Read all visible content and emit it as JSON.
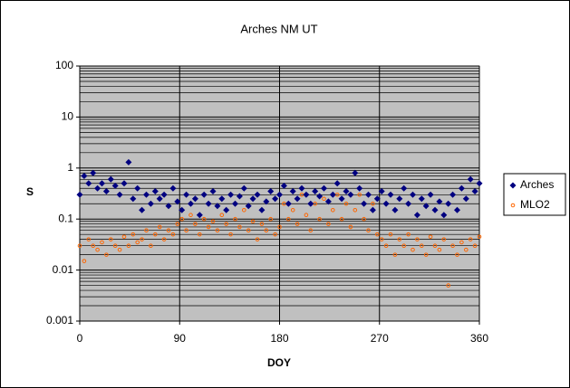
{
  "chart_data": {
    "type": "scatter",
    "title": "Arches NM UT",
    "x_label": "DOY",
    "y_label": "S",
    "log_y": true,
    "grid": true,
    "minor_grid": true,
    "legend": "right",
    "xlim": [
      0,
      360
    ],
    "xticks": [
      0,
      90,
      180,
      270,
      360
    ],
    "ylim": [
      0.001,
      100
    ],
    "yticks": [
      0.001,
      0.01,
      0.1,
      1,
      10,
      100
    ],
    "x": [
      0,
      4,
      8,
      12,
      16,
      20,
      24,
      28,
      32,
      36,
      40,
      44,
      48,
      52,
      56,
      60,
      64,
      68,
      72,
      76,
      80,
      84,
      88,
      92,
      96,
      100,
      104,
      108,
      112,
      116,
      120,
      124,
      128,
      132,
      136,
      140,
      144,
      148,
      152,
      156,
      160,
      164,
      168,
      172,
      176,
      180,
      184,
      188,
      192,
      196,
      200,
      204,
      208,
      212,
      216,
      220,
      224,
      228,
      232,
      236,
      240,
      244,
      248,
      252,
      256,
      260,
      264,
      268,
      272,
      276,
      280,
      284,
      288,
      292,
      296,
      300,
      304,
      308,
      312,
      316,
      320,
      324,
      328,
      332,
      336,
      340,
      344,
      348,
      352,
      356,
      360
    ],
    "series": [
      {
        "name": "Arches",
        "color": "#000080",
        "marker": "diamond",
        "values": [
          0.3,
          0.7,
          0.5,
          0.8,
          0.4,
          0.5,
          0.35,
          0.6,
          0.45,
          0.3,
          0.5,
          1.3,
          0.25,
          0.4,
          0.15,
          0.3,
          0.2,
          0.35,
          0.25,
          0.3,
          0.18,
          0.4,
          0.22,
          0.15,
          0.3,
          0.2,
          0.25,
          0.12,
          0.3,
          0.2,
          0.35,
          0.18,
          0.25,
          0.15,
          0.3,
          0.2,
          0.28,
          0.4,
          0.18,
          0.25,
          0.3,
          0.15,
          0.22,
          0.35,
          0.25,
          0.3,
          0.45,
          0.2,
          0.35,
          0.25,
          0.4,
          0.3,
          0.2,
          0.35,
          0.28,
          0.4,
          0.22,
          0.3,
          0.5,
          0.25,
          0.35,
          0.3,
          0.8,
          0.4,
          0.2,
          0.3,
          0.15,
          0.25,
          0.35,
          0.2,
          0.3,
          0.15,
          0.25,
          0.4,
          0.2,
          0.3,
          0.12,
          0.25,
          0.18,
          0.3,
          0.15,
          0.22,
          0.12,
          0.2,
          0.3,
          0.15,
          0.4,
          0.25,
          0.6,
          0.35,
          0.5
        ]
      },
      {
        "name": "MLO2",
        "color": "#ff6600",
        "marker": "circle",
        "values": [
          0.03,
          0.015,
          0.04,
          0.03,
          0.025,
          0.035,
          0.02,
          0.04,
          0.03,
          0.025,
          0.045,
          0.03,
          0.05,
          0.035,
          0.04,
          0.06,
          0.03,
          0.05,
          0.07,
          0.04,
          0.06,
          0.05,
          0.08,
          0.1,
          0.06,
          0.12,
          0.08,
          0.05,
          0.1,
          0.07,
          0.09,
          0.06,
          0.12,
          0.08,
          0.05,
          0.1,
          0.07,
          0.15,
          0.06,
          0.09,
          0.04,
          0.08,
          0.06,
          0.1,
          0.05,
          0.07,
          0.2,
          0.1,
          0.15,
          0.08,
          0.3,
          0.12,
          0.06,
          0.2,
          0.1,
          0.25,
          0.08,
          0.15,
          0.3,
          0.1,
          0.2,
          0.07,
          0.15,
          0.3,
          0.1,
          0.06,
          0.2,
          0.05,
          0.04,
          0.03,
          0.05,
          0.02,
          0.04,
          0.03,
          0.05,
          0.025,
          0.04,
          0.03,
          0.02,
          0.045,
          0.03,
          0.025,
          0.04,
          0.005,
          0.03,
          0.02,
          0.035,
          0.025,
          0.04,
          0.03,
          0.045
        ]
      }
    ]
  }
}
